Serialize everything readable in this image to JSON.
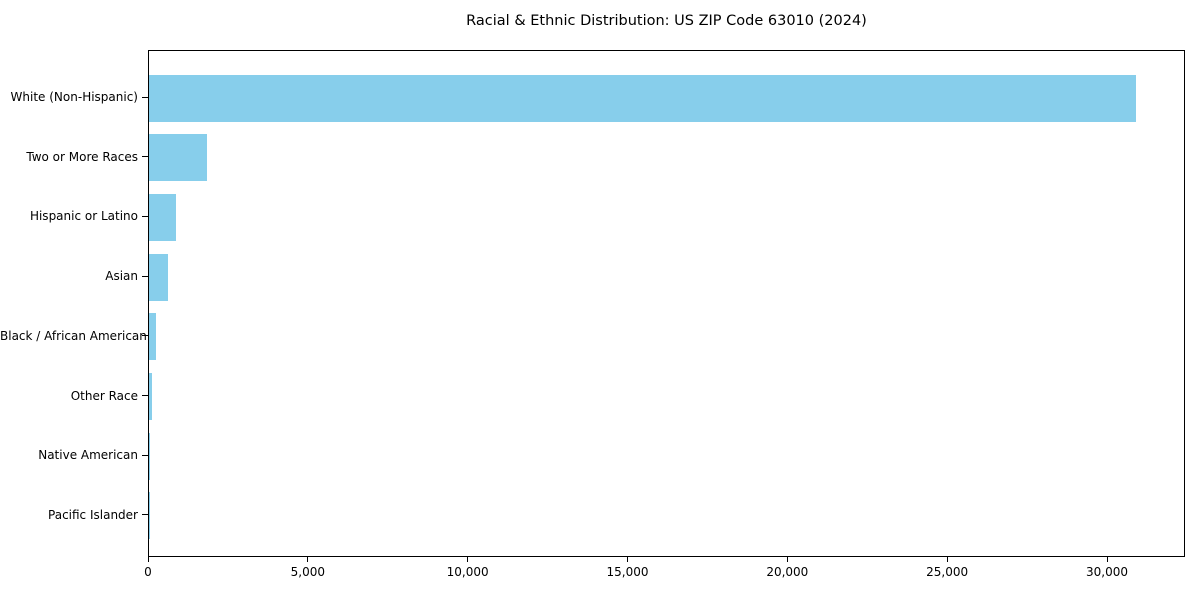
{
  "chart_data": {
    "type": "bar",
    "orientation": "horizontal",
    "title": "Racial & Ethnic Distribution: US ZIP Code 63010 (2024)",
    "categories": [
      "White (Non-Hispanic)",
      "Two or More Races",
      "Hispanic or Latino",
      "Asian",
      "Black / African American",
      "Other Race",
      "Native American",
      "Pacific Islander"
    ],
    "values": [
      30870,
      1820,
      830,
      610,
      225,
      80,
      25,
      10
    ],
    "xlabel": "",
    "ylabel": "",
    "xlim": [
      0,
      32440
    ],
    "x_ticks": [
      0,
      5000,
      10000,
      15000,
      20000,
      25000,
      30000
    ],
    "x_tick_labels": [
      "0",
      "5,000",
      "10,000",
      "15,000",
      "20,000",
      "25,000",
      "30,000"
    ],
    "bar_color": "#87CEEB",
    "axis_color": "#000000",
    "grid": false,
    "legend": null
  }
}
